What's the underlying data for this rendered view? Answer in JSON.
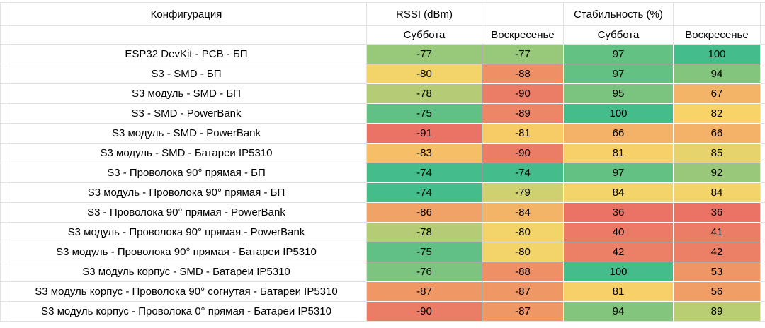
{
  "table": {
    "header": {
      "config_label": "Конфигурация",
      "rssi_group_label": "RSSI (dBm)",
      "stability_group_label": "Стабильность (%)",
      "sub_labels": [
        "Суббота",
        "Воскресенье",
        "Суббота",
        "Воскресенье"
      ]
    },
    "rows": [
      {
        "config": "ESP32 DevKit - PCB - БП",
        "values": [
          -77,
          -77,
          97,
          100
        ],
        "colors": [
          "#98C87A",
          "#98C87A",
          "#64C184",
          "#45BD8A"
        ]
      },
      {
        "config": "S3 - SMD - БП",
        "values": [
          -80,
          -88,
          97,
          94
        ],
        "colors": [
          "#F2D468",
          "#EE8F66",
          "#64C184",
          "#84C57E"
        ]
      },
      {
        "config": "S3 модуль - SMD - БП",
        "values": [
          -78,
          -90,
          95,
          67
        ],
        "colors": [
          "#B3CC75",
          "#EB7C66",
          "#7AC480",
          "#F3B467"
        ]
      },
      {
        "config": "S3 - SMD - PowerBank",
        "values": [
          -75,
          -89,
          100,
          82
        ],
        "colors": [
          "#61C185",
          "#ED8666",
          "#45BD8A",
          "#F8D367"
        ]
      },
      {
        "config": "S3 модуль - SMD - PowerBank",
        "values": [
          -91,
          -81,
          66,
          66
        ],
        "colors": [
          "#EA7366",
          "#F7CC67",
          "#F3B267",
          "#F3B267"
        ]
      },
      {
        "config": "S3 модуль - SMD - Батареи IP5310",
        "values": [
          -83,
          -90,
          81,
          85
        ],
        "colors": [
          "#F5BE67",
          "#EB7C66",
          "#F7D167",
          "#E7D36B"
        ]
      },
      {
        "config": "S3 - Проволока 90° прямая - БП",
        "values": [
          -74,
          -74,
          97,
          92
        ],
        "colors": [
          "#45BD8A",
          "#45BD8A",
          "#64C184",
          "#99C87A"
        ]
      },
      {
        "config": "S3 модуль - Проволока 90° прямая - БП",
        "values": [
          -74,
          -79,
          84,
          84
        ],
        "colors": [
          "#45BD8A",
          "#CFD06F",
          "#F3D468",
          "#F3D468"
        ]
      },
      {
        "config": "S3 - Проволока 90° прямая - PowerBank",
        "values": [
          -86,
          -84,
          36,
          36
        ],
        "colors": [
          "#F1A266",
          "#F3B467",
          "#EA7366",
          "#EA7366"
        ]
      },
      {
        "config": "S3 модуль - Проволока 90° прямая - PowerBank",
        "values": [
          -78,
          -80,
          40,
          41
        ],
        "colors": [
          "#B3CC75",
          "#F2D468",
          "#EB7B66",
          "#EB7D66"
        ]
      },
      {
        "config": "S3 модуль - Проволока 90° прямая - Батареи IP5310",
        "values": [
          -75,
          -80,
          42,
          42
        ],
        "colors": [
          "#61C185",
          "#F2D468",
          "#EC8066",
          "#EC8066"
        ]
      },
      {
        "config": "S3 модуль корпус - SMD - Батареи IP5310",
        "values": [
          -76,
          -88,
          100,
          53
        ],
        "colors": [
          "#7CC47F",
          "#EE8F66",
          "#45BD8A",
          "#EF9666"
        ]
      },
      {
        "config": "S3 модуль корпус - Проволока 90° согнутая - Батареи IP5310",
        "values": [
          -87,
          -87,
          81,
          56
        ],
        "colors": [
          "#EF9866",
          "#EF9866",
          "#F7D167",
          "#F09D66"
        ]
      },
      {
        "config": "S3 модуль корпус - Проволока 0° прямая - Батареи IP5310",
        "values": [
          -90,
          -87,
          94,
          89
        ],
        "colors": [
          "#EB7C66",
          "#EF9866",
          "#84C57E",
          "#B9CD73"
        ]
      }
    ]
  },
  "colors": {
    "background": "#FFFFFF",
    "gridline": "#E2E2E2",
    "cell_text": "#000000",
    "scale_red": "#EA7366",
    "scale_yellow": "#F8D567",
    "scale_green": "#45BD8A"
  }
}
